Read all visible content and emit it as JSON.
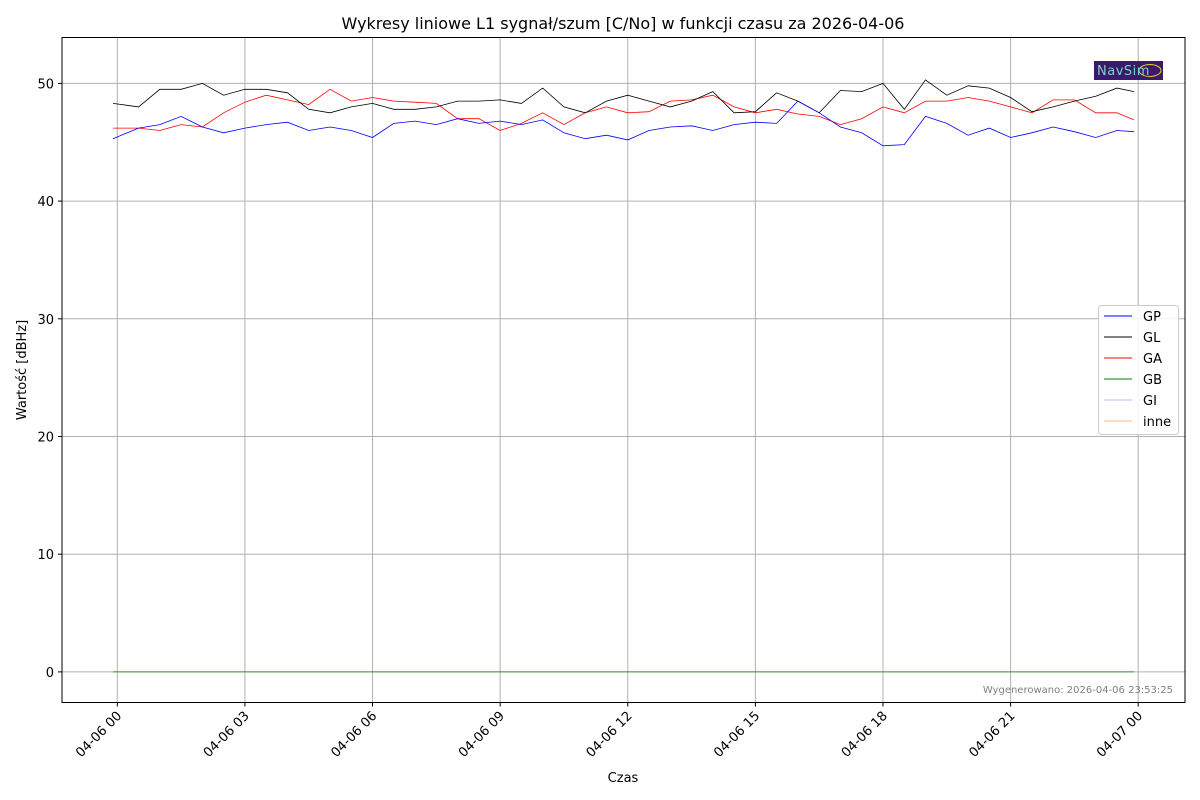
{
  "chart_data": {
    "type": "line",
    "title": "Wykresy liniowe L1 sygnał/szum [C/No] w funkcji czasu za 2026-04-06",
    "xlabel": "Czas",
    "ylabel": "Wartość [dBHz]",
    "xlim_hours": [
      -1.3,
      25.1
    ],
    "ylim": [
      -2.6,
      53.9
    ],
    "x_ticks": [
      {
        "hour": 0,
        "label": "04-06 00"
      },
      {
        "hour": 3,
        "label": "04-06 03"
      },
      {
        "hour": 6,
        "label": "04-06 06"
      },
      {
        "hour": 9,
        "label": "04-06 09"
      },
      {
        "hour": 12,
        "label": "04-06 12"
      },
      {
        "hour": 15,
        "label": "04-06 15"
      },
      {
        "hour": 18,
        "label": "04-06 18"
      },
      {
        "hour": 21,
        "label": "04-06 21"
      },
      {
        "hour": 24,
        "label": "04-07 00"
      }
    ],
    "y_ticks": [
      0,
      10,
      20,
      30,
      40,
      50
    ],
    "grid": true,
    "legend_position": "center-right",
    "x_hours": [
      -0.1,
      0.5,
      1,
      1.5,
      2,
      2.5,
      3,
      3.5,
      4,
      4.5,
      5,
      5.5,
      6,
      6.5,
      7,
      7.5,
      8,
      8.5,
      9,
      9.5,
      10,
      10.5,
      11,
      11.5,
      12,
      12.5,
      13,
      13.5,
      14,
      14.5,
      15,
      15.5,
      16,
      16.5,
      17,
      17.5,
      18,
      18.5,
      19,
      19.5,
      20,
      20.5,
      21,
      21.5,
      22,
      22.5,
      23,
      23.5,
      23.9
    ],
    "series": [
      {
        "name": "GP",
        "color": "#0000ff",
        "values": [
          45.3,
          46.2,
          46.5,
          47.2,
          46.3,
          45.8,
          46.2,
          46.5,
          46.7,
          46.0,
          46.3,
          46.0,
          45.4,
          46.6,
          46.8,
          46.5,
          47.0,
          46.6,
          46.8,
          46.5,
          46.9,
          45.8,
          45.3,
          45.6,
          45.2,
          46.0,
          46.3,
          46.4,
          46.0,
          46.5,
          46.7,
          46.6,
          48.5,
          47.5,
          46.3,
          45.8,
          44.7,
          44.8,
          47.2,
          46.6,
          45.6,
          46.2,
          45.4,
          45.8,
          46.3,
          45.9,
          45.4,
          46.0,
          45.9
        ]
      },
      {
        "name": "GL",
        "color": "#000000",
        "values": [
          48.3,
          48.0,
          49.5,
          49.5,
          50.0,
          49.0,
          49.5,
          49.5,
          49.2,
          47.8,
          47.5,
          48.0,
          48.3,
          47.8,
          47.8,
          48.0,
          48.5,
          48.5,
          48.6,
          48.3,
          49.6,
          48.0,
          47.5,
          48.5,
          49.0,
          48.5,
          48.0,
          48.5,
          49.3,
          47.5,
          47.6,
          49.2,
          48.5,
          47.5,
          49.4,
          49.3,
          50.0,
          47.8,
          50.3,
          49.0,
          49.8,
          49.6,
          48.8,
          47.6,
          48.0,
          48.5,
          48.9,
          49.6,
          49.3
        ]
      },
      {
        "name": "GA",
        "color": "#ff0000",
        "values": [
          46.2,
          46.2,
          46.0,
          46.5,
          46.3,
          47.5,
          48.4,
          49.0,
          48.6,
          48.2,
          49.5,
          48.5,
          48.8,
          48.5,
          48.4,
          48.3,
          47.0,
          47.0,
          46.0,
          46.6,
          47.5,
          46.5,
          47.5,
          48.0,
          47.5,
          47.6,
          48.5,
          48.6,
          49.0,
          48.0,
          47.5,
          47.8,
          47.4,
          47.2,
          46.5,
          47.0,
          48.0,
          47.5,
          48.5,
          48.5,
          48.8,
          48.5,
          48.0,
          47.5,
          48.6,
          48.6,
          47.5,
          47.5,
          46.9
        ]
      },
      {
        "name": "GB",
        "color": "#008000",
        "values": [
          0,
          0,
          0,
          0,
          0,
          0,
          0,
          0,
          0,
          0,
          0,
          0,
          0,
          0,
          0,
          0,
          0,
          0,
          0,
          0,
          0,
          0,
          0,
          0,
          0,
          0,
          0,
          0,
          0,
          0,
          0,
          0,
          0,
          0,
          0,
          0,
          0,
          0,
          0,
          0,
          0,
          0,
          0,
          0,
          0,
          0,
          0,
          0,
          0
        ]
      },
      {
        "name": "GI",
        "color": "#aec7e8",
        "values": [
          0,
          0,
          0,
          0,
          0,
          0,
          0,
          0,
          0,
          0,
          0,
          0,
          0,
          0,
          0,
          0,
          0,
          0,
          0,
          0,
          0,
          0,
          0,
          0,
          0,
          0,
          0,
          0,
          0,
          0,
          0,
          0,
          0,
          0,
          0,
          0,
          0,
          0,
          0,
          0,
          0,
          0,
          0,
          0,
          0,
          0,
          0,
          0,
          0
        ]
      },
      {
        "name": "inne",
        "color": "#ffbb78",
        "values": [
          0,
          0,
          0,
          0,
          0,
          0,
          0,
          0,
          0,
          0,
          0,
          0,
          0,
          0,
          0,
          0,
          0,
          0,
          0,
          0,
          0,
          0,
          0,
          0,
          0,
          0,
          0,
          0,
          0,
          0,
          0,
          0,
          0,
          0,
          0,
          0,
          0,
          0,
          0,
          0,
          0,
          0,
          0,
          0,
          0,
          0,
          0,
          0,
          0
        ]
      }
    ],
    "annotation": "Wygenerowano: 2026-04-06 23:53:25",
    "logo_text": "NavSim"
  }
}
